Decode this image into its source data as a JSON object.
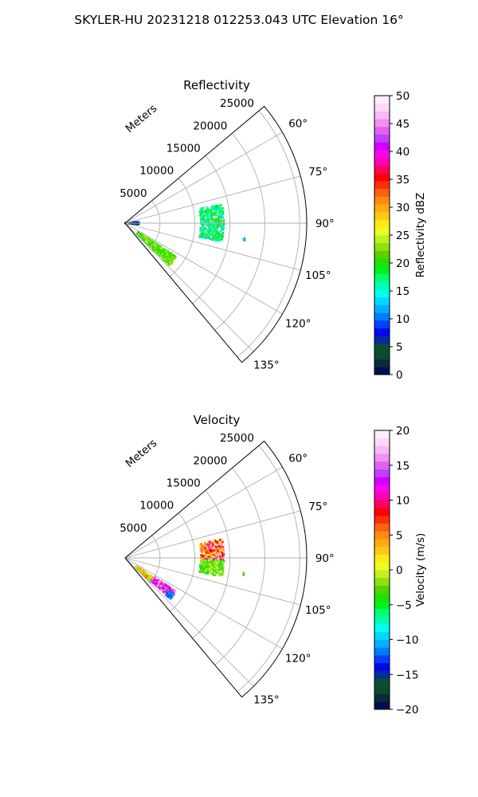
{
  "figure_title": "SKYLER-HU  20231218  012253.043 UTC Elevation 16°",
  "chart_data": [
    {
      "type": "heatmap",
      "title": "Reflectivity",
      "radial_axis_label": "Meters",
      "radial_ticks": [
        "5000",
        "10000",
        "15000",
        "20000",
        "25000"
      ],
      "radial_tick_values": [
        5000,
        10000,
        15000,
        20000,
        25000
      ],
      "rlim": [
        0,
        26000
      ],
      "theta_range_deg": [
        50,
        140
      ],
      "theta_ticks": [
        "60°",
        "75°",
        "90°",
        "105°",
        "120°",
        "135°"
      ],
      "theta_tick_values": [
        60,
        75,
        90,
        105,
        120,
        135
      ],
      "grid": true,
      "colorbar": {
        "label": "Reflectivity dBZ",
        "range": [
          0,
          50
        ],
        "ticks": [
          "0",
          "5",
          "10",
          "15",
          "20",
          "25",
          "30",
          "35",
          "40",
          "45",
          "50"
        ],
        "tick_values": [
          0,
          5,
          10,
          15,
          20,
          25,
          30,
          35,
          40,
          45,
          50
        ],
        "colors": [
          "#00104a",
          "#0a2a3a",
          "#0c4a2c",
          "#0a5030",
          "#0a2aa0",
          "#0008ee",
          "#0040ff",
          "#007cff",
          "#00b0ff",
          "#00d8ff",
          "#00ffee",
          "#00ffb0",
          "#00ff70",
          "#00f020",
          "#22e000",
          "#5ad000",
          "#90e010",
          "#c0f020",
          "#ecfc20",
          "#ffe818",
          "#ffc810",
          "#ffaa10",
          "#ff8c10",
          "#ff6010",
          "#ff3008",
          "#ff0008",
          "#ff0060",
          "#ff00b0",
          "#ff00f0",
          "#d000ff",
          "#c040ff",
          "#e060f0",
          "#f090f0",
          "#f8b8f8",
          "#fcd8fc",
          "#ffeeff"
        ]
      },
      "echoes": [
        {
          "r0": 2300,
          "r1": 8800,
          "t0": 123,
          "t1": 134,
          "v0": 18,
          "v1": 25
        },
        {
          "r0": 10800,
          "r1": 14200,
          "t0": 79,
          "t1": 101,
          "v0": 13,
          "v1": 22
        },
        {
          "r0": 0,
          "r1": 2000,
          "t0": 84,
          "t1": 96,
          "v0": 2,
          "v1": 8
        },
        {
          "r0": 17000,
          "r1": 17300,
          "t0": 97,
          "t1": 98.5,
          "v0": 10,
          "v1": 14
        }
      ]
    },
    {
      "type": "heatmap",
      "title": "Velocity",
      "radial_axis_label": "Meters",
      "radial_ticks": [
        "5000",
        "10000",
        "15000",
        "20000",
        "25000"
      ],
      "radial_tick_values": [
        5000,
        10000,
        15000,
        20000,
        25000
      ],
      "rlim": [
        0,
        26000
      ],
      "theta_range_deg": [
        50,
        140
      ],
      "theta_ticks": [
        "60°",
        "75°",
        "90°",
        "105°",
        "120°",
        "135°"
      ],
      "theta_tick_values": [
        60,
        75,
        90,
        105,
        120,
        135
      ],
      "grid": true,
      "colorbar": {
        "label": "Velocity (m/s)",
        "range": [
          -20,
          20
        ],
        "ticks": [
          "−20",
          "−15",
          "−10",
          "−5",
          "0",
          "5",
          "10",
          "15",
          "20"
        ],
        "tick_values": [
          -20,
          -15,
          -10,
          -5,
          0,
          5,
          10,
          15,
          20
        ],
        "colors": [
          "#00104a",
          "#0a2a3a",
          "#0c4a2c",
          "#0a5030",
          "#0a2aa0",
          "#0008ee",
          "#0040ff",
          "#007cff",
          "#00b0ff",
          "#00d8ff",
          "#00ffee",
          "#00ffb0",
          "#00ff70",
          "#00f020",
          "#22e000",
          "#5ad000",
          "#90e010",
          "#c0f020",
          "#ecfc20",
          "#ffe818",
          "#ffc810",
          "#ffaa10",
          "#ff8c10",
          "#ff6010",
          "#ff3008",
          "#ff0008",
          "#ff0060",
          "#ff00b0",
          "#ff00f0",
          "#d000ff",
          "#c040ff",
          "#e060f0",
          "#f090f0",
          "#f8b8f8",
          "#fcd8fc",
          "#ffeeff"
        ]
      },
      "echoes": [
        {
          "r0": 2000,
          "r1": 5000,
          "t0": 125,
          "t1": 134,
          "v0": -3,
          "v1": 6
        },
        {
          "r0": 5000,
          "r1": 8800,
          "t0": 123,
          "t1": 132,
          "v0": 8,
          "v1": 18
        },
        {
          "r0": 7800,
          "r1": 8800,
          "t0": 127,
          "t1": 133,
          "v0": -14,
          "v1": -10
        },
        {
          "r0": 10800,
          "r1": 14200,
          "t0": 91,
          "t1": 101,
          "v0": -5,
          "v1": 0
        },
        {
          "r0": 10800,
          "r1": 14200,
          "t0": 79,
          "t1": 91,
          "v0": 0,
          "v1": 12
        },
        {
          "r0": 17000,
          "r1": 17300,
          "t0": 97,
          "t1": 98.5,
          "v0": -4,
          "v1": -2
        }
      ]
    }
  ]
}
